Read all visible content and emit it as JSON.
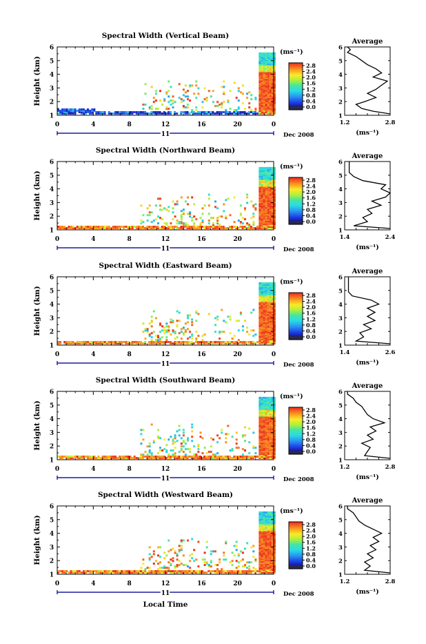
{
  "figure": {
    "xaxis_label": "Local Time",
    "date_label": "Dec 2008",
    "day_label": "11",
    "colorbar_unit": "(ms⁻¹)",
    "colorbar_ticks": [
      "2.8",
      "2.4",
      "2.0",
      "1.6",
      "1.2",
      "0.8",
      "0.4",
      "0.0"
    ],
    "y_ticks": [
      "6",
      "5",
      "4",
      "3",
      "2",
      "1"
    ],
    "x_ticks": [
      "0",
      "4",
      "8",
      "12",
      "16",
      "20",
      "0"
    ],
    "avg_title": "Average",
    "avg_unit": "(ms⁻¹)"
  },
  "chart_data": [
    {
      "type": "heatmap",
      "title": "Spectral Width (Vertical Beam)",
      "ylabel": "Height (km)",
      "xlabel": "Local Time",
      "ylim": [
        1,
        6
      ],
      "xlim": [
        0,
        24
      ],
      "colorbar_range": [
        0.0,
        2.8
      ],
      "avg_profile": {
        "title": "Average",
        "xlim": [
          1.2,
          2.8
        ],
        "xticks": [
          "1.2",
          "2.8"
        ],
        "xlabel": "(ms⁻¹)",
        "heights": [
          1.1,
          1.3,
          1.5,
          1.8,
          2.0,
          2.3,
          2.6,
          2.9,
          3.2,
          3.5,
          3.8,
          4.1,
          4.4,
          4.7,
          5.0,
          5.3,
          5.6,
          5.8,
          6.0
        ],
        "values": [
          2.8,
          2.2,
          1.8,
          1.6,
          1.9,
          2.3,
          2.0,
          2.3,
          2.5,
          2.7,
          2.2,
          2.5,
          2.3,
          2.0,
          1.8,
          1.6,
          1.3,
          1.4,
          1.3
        ]
      }
    },
    {
      "type": "heatmap",
      "title": "Spectral Width (Northward Beam)",
      "ylabel": "Height (km)",
      "xlabel": "Local Time",
      "ylim": [
        1,
        6
      ],
      "xlim": [
        0,
        24
      ],
      "colorbar_range": [
        0.0,
        2.8
      ],
      "avg_profile": {
        "title": "Average",
        "xlim": [
          1.4,
          2.4
        ],
        "xticks": [
          "1.4",
          "2.4"
        ],
        "xlabel": "(ms⁻¹)",
        "heights": [
          1.1,
          1.3,
          1.6,
          1.9,
          2.2,
          2.5,
          2.8,
          3.1,
          3.4,
          3.7,
          4.0,
          4.3,
          4.6,
          4.9,
          5.2,
          5.5,
          5.8,
          6.0
        ],
        "values": [
          2.4,
          1.6,
          1.9,
          1.8,
          2.0,
          1.9,
          2.2,
          2.0,
          2.3,
          2.4,
          2.2,
          2.3,
          1.8,
          1.6,
          1.5,
          1.5,
          1.5,
          1.5
        ]
      }
    },
    {
      "type": "heatmap",
      "title": "Spectral Width (Eastward Beam)",
      "ylabel": "Height (km)",
      "xlabel": "Local Time",
      "ylim": [
        1,
        6
      ],
      "xlim": [
        0,
        24
      ],
      "colorbar_range": [
        0.0,
        2.8
      ],
      "avg_profile": {
        "title": "Average",
        "xlim": [
          1.4,
          2.6
        ],
        "xticks": [
          "1.4",
          "2.6"
        ],
        "xlabel": "(ms⁻¹)",
        "heights": [
          1.1,
          1.3,
          1.6,
          1.9,
          2.2,
          2.5,
          2.8,
          3.1,
          3.4,
          3.7,
          4.0,
          4.3,
          4.6,
          4.9,
          5.2,
          5.5,
          5.8,
          6.0
        ],
        "values": [
          2.6,
          1.7,
          1.9,
          1.8,
          2.1,
          1.9,
          2.2,
          2.0,
          2.2,
          2.0,
          2.3,
          2.1,
          1.6,
          1.5,
          1.5,
          1.5,
          1.5,
          1.5
        ]
      }
    },
    {
      "type": "heatmap",
      "title": "Spectral Width (Southward Beam)",
      "ylabel": "Height (km)",
      "xlabel": "Local Time",
      "ylim": [
        1,
        6
      ],
      "xlim": [
        0,
        24
      ],
      "colorbar_range": [
        0.0,
        2.8
      ],
      "avg_profile": {
        "title": "Average",
        "xlim": [
          1.2,
          2.8
        ],
        "xticks": [
          "1.2",
          "2.8"
        ],
        "xlabel": "(ms⁻¹)",
        "heights": [
          1.1,
          1.3,
          1.6,
          1.9,
          2.2,
          2.5,
          2.8,
          3.1,
          3.4,
          3.7,
          4.0,
          4.3,
          4.6,
          4.9,
          5.2,
          5.5,
          5.8,
          6.0
        ],
        "values": [
          2.8,
          1.9,
          2.0,
          2.1,
          1.8,
          2.2,
          2.0,
          2.3,
          2.1,
          2.6,
          2.2,
          2.0,
          1.9,
          1.8,
          1.6,
          1.5,
          1.3,
          1.3
        ]
      }
    },
    {
      "type": "heatmap",
      "title": "Spectral Width (Westward Beam)",
      "ylabel": "Height (km)",
      "xlabel": "Local Time",
      "ylim": [
        1,
        6
      ],
      "xlim": [
        0,
        24
      ],
      "colorbar_range": [
        0.0,
        2.8
      ],
      "avg_profile": {
        "title": "Average",
        "xlim": [
          1.2,
          2.8
        ],
        "xticks": [
          "1.2",
          "2.8"
        ],
        "xlabel": "(ms⁻¹)",
        "heights": [
          1.1,
          1.3,
          1.6,
          1.9,
          2.2,
          2.5,
          2.8,
          3.1,
          3.4,
          3.7,
          4.0,
          4.3,
          4.6,
          4.9,
          5.2,
          5.5,
          5.8,
          6.0
        ],
        "values": [
          2.8,
          1.9,
          2.1,
          1.9,
          2.2,
          2.0,
          2.3,
          2.1,
          2.4,
          2.2,
          2.5,
          2.2,
          1.9,
          1.7,
          1.6,
          1.5,
          1.3,
          1.3
        ]
      }
    }
  ]
}
